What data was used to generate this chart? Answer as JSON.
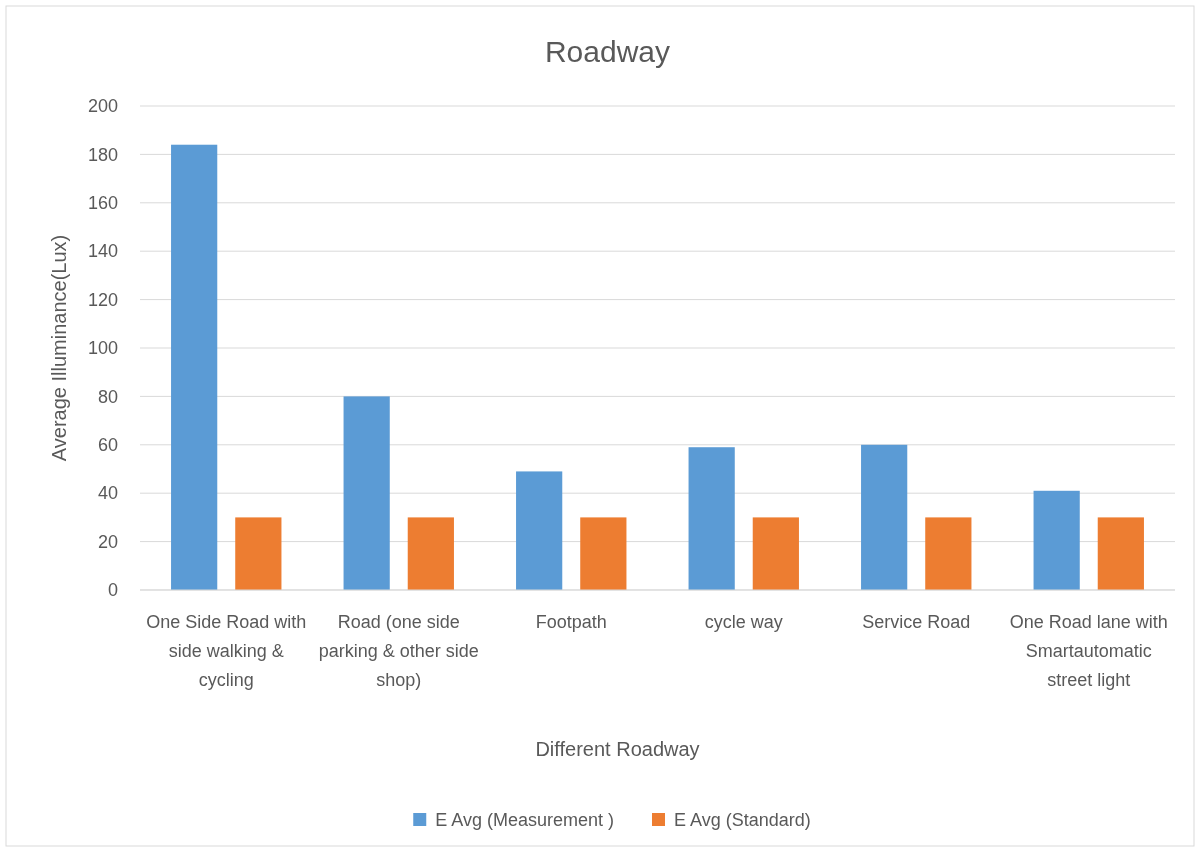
{
  "chart_data": {
    "type": "bar",
    "title": "Roadway",
    "xlabel": "Different Roadway",
    "ylabel": "Average Illuminance(Lux)",
    "categories": [
      "One Side Road with side walking & cycling",
      "Road (one side parking & other side shop)",
      "Footpath",
      "cycle way",
      "Service Road",
      "One Road lane with Smartautomatic street light"
    ],
    "series": [
      {
        "name": "E Avg (Measurement )",
        "color": "#5b9bd5",
        "values": [
          184,
          80,
          49,
          59,
          60,
          41
        ]
      },
      {
        "name": "E Avg (Standard)",
        "color": "#ed7d31",
        "values": [
          30,
          30,
          30,
          30,
          30,
          30
        ]
      }
    ],
    "ylim": [
      0,
      200
    ],
    "yticks": [
      0,
      20,
      40,
      60,
      80,
      100,
      120,
      140,
      160,
      180,
      200
    ],
    "grid": "y",
    "legend": "bottom"
  }
}
